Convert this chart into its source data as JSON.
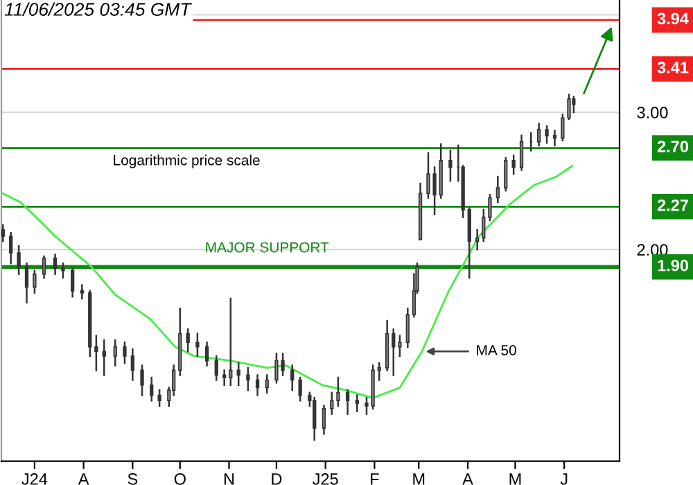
{
  "chart_data": {
    "type": "candlestick",
    "title": "11/06/2025 03:45 GMT",
    "log": true,
    "ylim": [
      1.07,
      4.18
    ],
    "yticks": [
      {
        "value": 2,
        "label": "2.00"
      },
      {
        "value": 3,
        "label": "3.00"
      },
      {
        "value": 4,
        "label": null
      }
    ],
    "xlim": [
      "2024-06-10",
      "2025-07-06"
    ],
    "xticks": [
      {
        "value": "2024-07-01",
        "label": "J24"
      },
      {
        "value": "2024-08-01",
        "label": "A"
      },
      {
        "value": "2024-09-01",
        "label": "S"
      },
      {
        "value": "2024-10-01",
        "label": "O"
      },
      {
        "value": "2024-11-01",
        "label": "N"
      },
      {
        "value": "2024-12-01",
        "label": "D"
      },
      {
        "value": "2025-01-01",
        "label": "J25"
      },
      {
        "value": "2025-02-01",
        "label": "F"
      },
      {
        "value": "2025-03-01",
        "label": "M"
      },
      {
        "value": "2025-04-01",
        "label": "A"
      },
      {
        "value": "2025-05-01",
        "label": "M"
      },
      {
        "value": "2025-06-01",
        "label": "J"
      }
    ],
    "grid": "y",
    "series": [
      {
        "type": "candlestick",
        "color": "#333333",
        "x": [
          "2024-06-11",
          "2024-06-16",
          "2024-06-21",
          "2024-06-26",
          "2024-07-01",
          "2024-07-07",
          "2024-07-14",
          "2024-07-19",
          "2024-07-25",
          "2024-07-31",
          "2024-08-05",
          "2024-08-09",
          "2024-08-14",
          "2024-08-21",
          "2024-08-27",
          "2024-09-01",
          "2024-09-07",
          "2024-09-13",
          "2024-09-18",
          "2024-09-24",
          "2024-09-27",
          "2024-10-01",
          "2024-10-06",
          "2024-10-12",
          "2024-10-18",
          "2024-10-24",
          "2024-10-29",
          "2024-11-02",
          "2024-11-07",
          "2024-11-13",
          "2024-11-19",
          "2024-11-25",
          "2024-12-01",
          "2024-12-05",
          "2024-12-11",
          "2024-12-16",
          "2024-12-22",
          "2024-12-25",
          "2024-12-31",
          "2025-01-05",
          "2025-01-09",
          "2025-01-15",
          "2025-01-21",
          "2025-01-27",
          "2025-01-31",
          "2025-02-04",
          "2025-02-09",
          "2025-02-13",
          "2025-02-17",
          "2025-02-22",
          "2025-02-26",
          "2025-02-28",
          "2025-03-02",
          "2025-03-07",
          "2025-03-11",
          "2025-03-15",
          "2025-03-21",
          "2025-03-26",
          "2025-03-29",
          "2025-04-02",
          "2025-04-07",
          "2025-04-11",
          "2025-04-15",
          "2025-04-20",
          "2025-04-25",
          "2025-04-30",
          "2025-05-05",
          "2025-05-11",
          "2025-05-16",
          "2025-05-21",
          "2025-05-26",
          "2025-05-31",
          "2025-06-04",
          "2025-06-07"
        ],
        "ohlc": [
          [
            2.12,
            2.15,
            2.05,
            2.08
          ],
          [
            2.08,
            2.1,
            1.92,
            1.98
          ],
          [
            1.98,
            2.02,
            1.86,
            1.9
          ],
          [
            1.9,
            1.92,
            1.71,
            1.79
          ],
          [
            1.79,
            1.88,
            1.76,
            1.86
          ],
          [
            1.86,
            1.96,
            1.84,
            1.95
          ],
          [
            1.95,
            1.97,
            1.86,
            1.89
          ],
          [
            1.89,
            1.92,
            1.84,
            1.88
          ],
          [
            1.88,
            1.89,
            1.74,
            1.77
          ],
          [
            1.77,
            1.8,
            1.73,
            1.76
          ],
          [
            1.76,
            1.77,
            1.46,
            1.5
          ],
          [
            1.5,
            1.55,
            1.4,
            1.48
          ],
          [
            1.48,
            1.53,
            1.38,
            1.46
          ],
          [
            1.46,
            1.53,
            1.42,
            1.5
          ],
          [
            1.5,
            1.52,
            1.43,
            1.46
          ],
          [
            1.46,
            1.49,
            1.36,
            1.4
          ],
          [
            1.4,
            1.42,
            1.3,
            1.34
          ],
          [
            1.34,
            1.37,
            1.28,
            1.3
          ],
          [
            1.3,
            1.32,
            1.26,
            1.28
          ],
          [
            1.28,
            1.33,
            1.26,
            1.32
          ],
          [
            1.32,
            1.42,
            1.3,
            1.4
          ],
          [
            1.4,
            1.68,
            1.38,
            1.56
          ],
          [
            1.56,
            1.58,
            1.48,
            1.52
          ],
          [
            1.52,
            1.56,
            1.46,
            1.5
          ],
          [
            1.5,
            1.52,
            1.42,
            1.44
          ],
          [
            1.44,
            1.46,
            1.36,
            1.38
          ],
          [
            1.38,
            1.4,
            1.34,
            1.37
          ],
          [
            1.37,
            1.73,
            1.34,
            1.4
          ],
          [
            1.4,
            1.43,
            1.34,
            1.38
          ],
          [
            1.38,
            1.41,
            1.32,
            1.36
          ],
          [
            1.36,
            1.38,
            1.3,
            1.33
          ],
          [
            1.33,
            1.38,
            1.31,
            1.36
          ],
          [
            1.36,
            1.47,
            1.35,
            1.44
          ],
          [
            1.44,
            1.47,
            1.38,
            1.4
          ],
          [
            1.4,
            1.42,
            1.32,
            1.36
          ],
          [
            1.36,
            1.37,
            1.28,
            1.3
          ],
          [
            1.3,
            1.31,
            1.26,
            1.28
          ],
          [
            1.28,
            1.29,
            1.14,
            1.18
          ],
          [
            1.18,
            1.26,
            1.16,
            1.25
          ],
          [
            1.25,
            1.31,
            1.23,
            1.28
          ],
          [
            1.28,
            1.37,
            1.26,
            1.31
          ],
          [
            1.31,
            1.32,
            1.23,
            1.28
          ],
          [
            1.28,
            1.3,
            1.24,
            1.27
          ],
          [
            1.27,
            1.29,
            1.23,
            1.26
          ],
          [
            1.26,
            1.42,
            1.25,
            1.4
          ],
          [
            1.4,
            1.43,
            1.36,
            1.41
          ],
          [
            1.41,
            1.62,
            1.4,
            1.56
          ],
          [
            1.56,
            1.58,
            1.38,
            1.5
          ],
          [
            1.5,
            1.55,
            1.46,
            1.52
          ],
          [
            1.52,
            1.68,
            1.5,
            1.65
          ],
          [
            1.65,
            1.86,
            1.64,
            1.77
          ],
          [
            1.77,
            1.92,
            1.76,
            1.9
          ],
          [
            2.06,
            2.43,
            2.06,
            2.36
          ],
          [
            2.36,
            2.66,
            2.33,
            2.5
          ],
          [
            2.5,
            2.55,
            2.22,
            2.35
          ],
          [
            2.35,
            2.73,
            2.33,
            2.6
          ],
          [
            2.6,
            2.68,
            2.45,
            2.55
          ],
          [
            2.55,
            2.72,
            2.45,
            2.55
          ],
          [
            2.55,
            2.56,
            2.2,
            2.25
          ],
          [
            2.25,
            2.26,
            1.84,
            2.05
          ],
          [
            2.05,
            2.12,
            2.0,
            2.07
          ],
          [
            2.07,
            2.25,
            2.05,
            2.2
          ],
          [
            2.2,
            2.35,
            2.18,
            2.33
          ],
          [
            2.33,
            2.48,
            2.3,
            2.4
          ],
          [
            2.4,
            2.62,
            2.38,
            2.6
          ],
          [
            2.6,
            2.64,
            2.5,
            2.55
          ],
          [
            2.55,
            2.8,
            2.53,
            2.75
          ],
          [
            2.75,
            2.82,
            2.68,
            2.75
          ],
          [
            2.75,
            2.9,
            2.72,
            2.85
          ],
          [
            2.85,
            2.88,
            2.74,
            2.8
          ],
          [
            2.8,
            2.84,
            2.72,
            2.78
          ],
          [
            2.78,
            2.98,
            2.76,
            2.95
          ],
          [
            2.95,
            3.16,
            2.94,
            3.12
          ],
          [
            3.12,
            3.14,
            3.0,
            3.07
          ]
        ]
      },
      {
        "type": "line",
        "color": "#44ee44",
        "x": [
          "2024-06-11",
          "2024-06-22",
          "2024-07-05",
          "2024-07-14",
          "2024-08-06",
          "2024-08-21",
          "2024-09-12",
          "2024-09-28",
          "2024-10-10",
          "2024-11-02",
          "2024-11-25",
          "2024-12-07",
          "2024-12-30",
          "2025-01-14",
          "2025-01-31",
          "2025-02-17",
          "2025-03-03",
          "2025-03-20",
          "2025-04-08",
          "2025-04-28",
          "2025-05-13",
          "2025-05-27",
          "2025-06-06"
        ],
        "values": [
          2.36,
          2.3,
          2.17,
          2.08,
          1.9,
          1.75,
          1.63,
          1.5,
          1.46,
          1.44,
          1.41,
          1.42,
          1.34,
          1.32,
          1.29,
          1.33,
          1.48,
          1.77,
          2.08,
          2.29,
          2.42,
          2.48,
          2.56
        ]
      }
    ],
    "ref_lines": [
      {
        "axis": "y",
        "value": 3.94,
        "label": "3.94",
        "color": "#ee2222"
      },
      {
        "axis": "y",
        "value": 3.41,
        "label": "3.41",
        "color": "#ee2222"
      },
      {
        "axis": "y",
        "value": 2.7,
        "label": "2.70",
        "color": "#118811"
      },
      {
        "axis": "y",
        "value": 2.27,
        "label": "2.27",
        "color": "#118811"
      },
      {
        "axis": "y",
        "value": 1.9,
        "label": "1.90",
        "color": "#118811"
      }
    ],
    "annotations": [
      "Logarithmic price scale",
      {
        "text": "MAJOR SUPPORT",
        "x": "2024-11-25",
        "y": 1.9
      },
      {
        "text": "MA 50",
        "x": "2025-03-03",
        "y": 1.48
      }
    ]
  }
}
